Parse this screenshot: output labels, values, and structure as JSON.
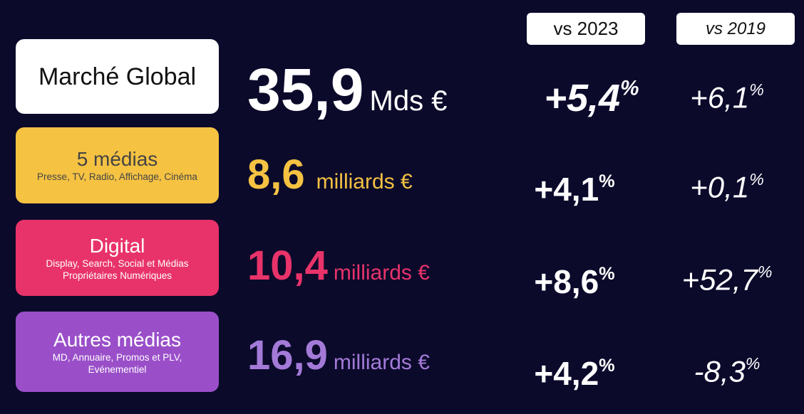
{
  "headers": {
    "vs_2023": "vs 2023",
    "vs_2019": "vs 2019"
  },
  "rows": [
    {
      "label": "Marché Global",
      "sub": [],
      "value": "35,9",
      "unit": "Mds €",
      "vs_2023": {
        "number": "+5,4",
        "unit": "%"
      },
      "vs_2019": {
        "number": "+6,1",
        "unit": "%"
      }
    },
    {
      "label": "5 médias",
      "sub": [
        "Presse, TV, Radio, Affichage, Cinéma"
      ],
      "value": "8,6",
      "unit": "milliards €",
      "vs_2023": {
        "number": "+4,1",
        "unit": "%"
      },
      "vs_2019": {
        "number": "+0,1",
        "unit": "%"
      }
    },
    {
      "label": "Digital",
      "sub": [
        "Display, Search, Social et Médias",
        "Propriétaires Numériques"
      ],
      "value": "10,4",
      "unit": "milliards €",
      "vs_2023": {
        "number": "+8,6",
        "unit": "%"
      },
      "vs_2019": {
        "number": "+52,7",
        "unit": "%"
      }
    },
    {
      "label": "Autres médias",
      "sub": [
        "MD, Annuaire, Promos et PLV,",
        "Evénementiel"
      ],
      "value": "16,9",
      "unit": "milliards €",
      "vs_2023": {
        "number": "+4,2",
        "unit": "%"
      },
      "vs_2019": {
        "number": "-8,3",
        "unit": "%"
      }
    }
  ]
}
